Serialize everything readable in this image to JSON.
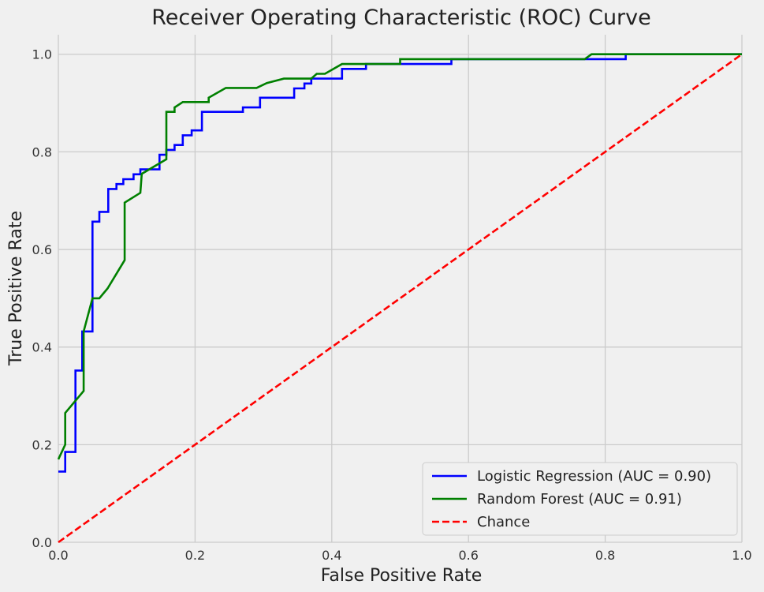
{
  "chart_data": {
    "type": "line",
    "title": "Receiver Operating Characteristic (ROC) Curve",
    "xlabel": "False Positive Rate",
    "ylabel": "True Positive Rate",
    "xlim": [
      0,
      1
    ],
    "ylim": [
      0,
      1.04
    ],
    "grid": true,
    "legend_position": "bottom-right",
    "xticks": [
      "0.0",
      "0.2",
      "0.4",
      "0.6",
      "0.8",
      "1.0"
    ],
    "yticks": [
      "0.0",
      "0.2",
      "0.4",
      "0.6",
      "0.8",
      "1.0"
    ],
    "series": [
      {
        "name": "Logistic Regression (AUC = 0.90)",
        "color": "#0000ff",
        "dash": "solid",
        "x": [
          0.0,
          0.01,
          0.01,
          0.025,
          0.025,
          0.035,
          0.035,
          0.05,
          0.05,
          0.06,
          0.06,
          0.073,
          0.073,
          0.085,
          0.085,
          0.095,
          0.095,
          0.11,
          0.11,
          0.12,
          0.12,
          0.148,
          0.148,
          0.158,
          0.158,
          0.17,
          0.17,
          0.182,
          0.182,
          0.195,
          0.195,
          0.21,
          0.21,
          0.27,
          0.27,
          0.295,
          0.295,
          0.345,
          0.345,
          0.36,
          0.36,
          0.37,
          0.37,
          0.415,
          0.415,
          0.45,
          0.45,
          0.575,
          0.575,
          0.83,
          0.83,
          1.0
        ],
        "y": [
          0.145,
          0.145,
          0.185,
          0.185,
          0.352,
          0.352,
          0.432,
          0.432,
          0.657,
          0.657,
          0.677,
          0.677,
          0.724,
          0.724,
          0.734,
          0.734,
          0.744,
          0.744,
          0.754,
          0.754,
          0.764,
          0.764,
          0.794,
          0.794,
          0.804,
          0.804,
          0.814,
          0.814,
          0.834,
          0.834,
          0.844,
          0.844,
          0.882,
          0.882,
          0.891,
          0.891,
          0.911,
          0.911,
          0.93,
          0.93,
          0.94,
          0.94,
          0.95,
          0.95,
          0.97,
          0.97,
          0.98,
          0.98,
          0.99,
          0.99,
          1.0,
          1.0
        ]
      },
      {
        "name": "Random Forest (AUC = 0.91)",
        "color": "#008000",
        "dash": "solid",
        "x": [
          0.0,
          0.01,
          0.01,
          0.037,
          0.037,
          0.05,
          0.06,
          0.072,
          0.097,
          0.097,
          0.12,
          0.122,
          0.158,
          0.158,
          0.17,
          0.17,
          0.182,
          0.22,
          0.22,
          0.245,
          0.29,
          0.305,
          0.33,
          0.37,
          0.378,
          0.39,
          0.415,
          0.5,
          0.5,
          0.77,
          0.78,
          1.0
        ],
        "y": [
          0.17,
          0.2,
          0.265,
          0.31,
          0.432,
          0.5,
          0.5,
          0.52,
          0.578,
          0.696,
          0.716,
          0.755,
          0.785,
          0.882,
          0.882,
          0.891,
          0.902,
          0.902,
          0.911,
          0.931,
          0.931,
          0.941,
          0.95,
          0.95,
          0.96,
          0.96,
          0.98,
          0.98,
          0.99,
          0.99,
          1.0,
          1.0
        ]
      },
      {
        "name": "Chance",
        "color": "#ff0000",
        "dash": "dashed",
        "x": [
          0.0,
          1.0
        ],
        "y": [
          0.0,
          1.0
        ]
      }
    ]
  }
}
